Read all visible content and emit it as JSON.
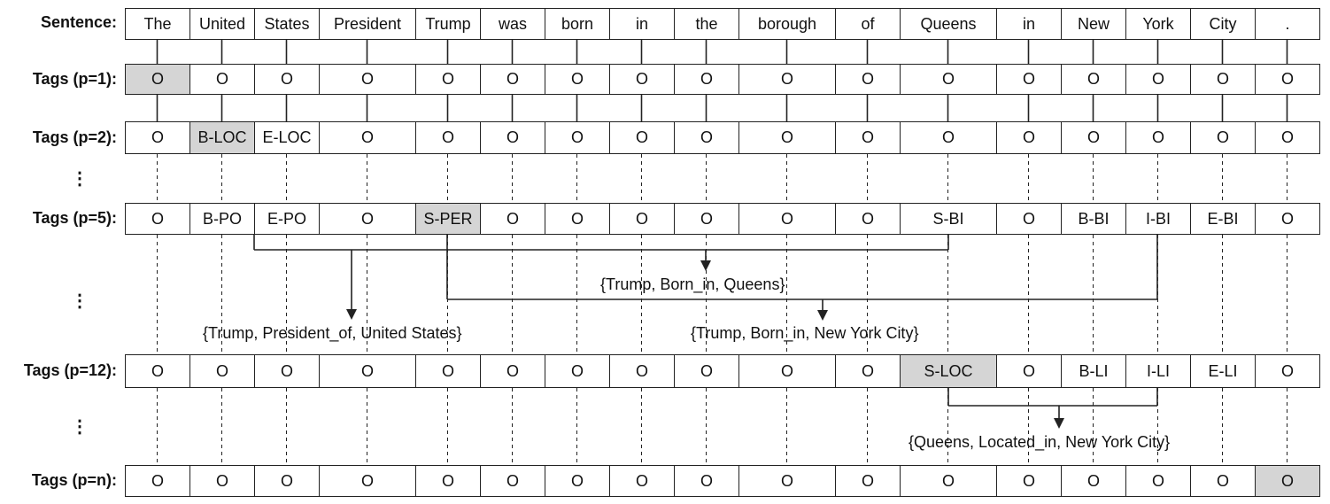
{
  "labels": {
    "sentence": "Sentence:",
    "p1": "Tags (p=1):",
    "p2": "Tags (p=2):",
    "p5": "Tags (p=5):",
    "p12": "Tags (p=12):",
    "pn": "Tags (p=n):",
    "ellipsis": "⋮"
  },
  "tokens": [
    "The",
    "United",
    "States",
    "President",
    "Trump",
    "was",
    "born",
    "in",
    "the",
    "borough",
    "of",
    "Queens",
    "in",
    "New",
    "York",
    "City",
    "."
  ],
  "rows": [
    {
      "key": "p1",
      "tags": [
        "O",
        "O",
        "O",
        "O",
        "O",
        "O",
        "O",
        "O",
        "O",
        "O",
        "O",
        "O",
        "O",
        "O",
        "O",
        "O",
        "O"
      ],
      "highlight": [
        0
      ]
    },
    {
      "key": "p2",
      "tags": [
        "O",
        "B-LOC",
        "E-LOC",
        "O",
        "O",
        "O",
        "O",
        "O",
        "O",
        "O",
        "O",
        "O",
        "O",
        "O",
        "O",
        "O",
        "O"
      ],
      "highlight": [
        1
      ]
    },
    {
      "key": "p5",
      "tags": [
        "O",
        "B-PO",
        "E-PO",
        "O",
        "S-PER",
        "O",
        "O",
        "O",
        "O",
        "O",
        "O",
        "S-BI",
        "O",
        "B-BI",
        "I-BI",
        "E-BI",
        "O"
      ],
      "highlight": [
        4
      ]
    },
    {
      "key": "p12",
      "tags": [
        "O",
        "O",
        "O",
        "O",
        "O",
        "O",
        "O",
        "O",
        "O",
        "O",
        "O",
        "S-LOC",
        "O",
        "B-LI",
        "I-LI",
        "E-LI",
        "O"
      ],
      "highlight": [
        11
      ]
    },
    {
      "key": "pn",
      "tags": [
        "O",
        "O",
        "O",
        "O",
        "O",
        "O",
        "O",
        "O",
        "O",
        "O",
        "O",
        "O",
        "O",
        "O",
        "O",
        "O",
        "O"
      ],
      "highlight": [
        16
      ]
    }
  ],
  "relations": {
    "r1": "{Trump, President_of, United States}",
    "r2": "{Trump, Born_in, Queens}",
    "r3": "{Trump, Born_in, New York City}",
    "r4": "{Queens, Located_in, New York City}"
  },
  "colors": {
    "highlight": "#d5d5d5",
    "line": "#222222"
  }
}
